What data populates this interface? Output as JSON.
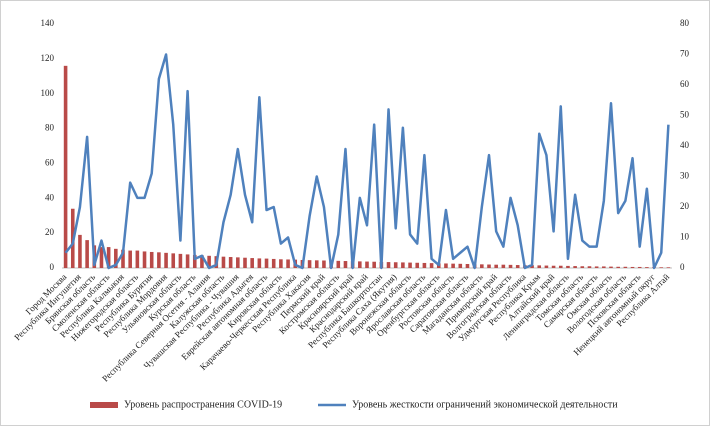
{
  "chart_data": {
    "type": "bar_line",
    "categories": [
      "Город Москва",
      null,
      "Республика Ингушетия",
      null,
      "Брянская область",
      null,
      "Смоленская область",
      null,
      "Республика Калмыкия",
      null,
      "Нижегородская область",
      null,
      "Республика Бурятия",
      null,
      "Республика Мордовия",
      null,
      "Ульяновская область",
      null,
      "Курская область",
      null,
      "Республика Северная Осетия - Алания",
      null,
      "Калужская область",
      null,
      "Чувашская Республика - Чувашия",
      null,
      "Республика Адыгея",
      null,
      "Еврейская автономная область",
      null,
      "Кировская область",
      null,
      "Карачаево-Черкесская Республика",
      null,
      "Республика Хакасия",
      null,
      "Пермский край",
      null,
      "Костромская область",
      null,
      "Красноярский край",
      null,
      "Краснодарский край",
      null,
      "Республика Башкортостан",
      null,
      "Республика Саха (Якутия)",
      null,
      "Воронежская область",
      null,
      "Ярославская область",
      null,
      "Оренбургская область",
      null,
      "Ростовская область",
      null,
      "Саратовская область",
      null,
      "Магаданская область",
      null,
      "Приморский край",
      null,
      "Волгоградская область",
      null,
      "Удмуртская Республика",
      null,
      "Республика Крым",
      null,
      "Алтайский край",
      null,
      "Ленинградская область",
      null,
      "Томская область",
      null,
      "Самарская область",
      null,
      "Омская область",
      null,
      "Вологодская область",
      null,
      "Псковская область",
      null,
      "Ненецкий автономный округ",
      null,
      "Республика Алтай"
    ],
    "series": [
      {
        "name": "Уровень распространения COVID-19",
        "color": "#b94a48",
        "kind": "bar",
        "axis": "y",
        "values": [
          116,
          34,
          19,
          16,
          13,
          12,
          12,
          11,
          10.5,
          10,
          10,
          9.5,
          9.2,
          9,
          8.7,
          8.4,
          8.1,
          7.8,
          7.5,
          7.3,
          7,
          6.8,
          6.5,
          6.3,
          6.1,
          5.9,
          5.7,
          5.5,
          5.4,
          5.2,
          5,
          4.9,
          4.8,
          4.6,
          4.5,
          4.4,
          4.3,
          4.2,
          4.1,
          4,
          3.9,
          3.8,
          3.7,
          3.6,
          3.5,
          3.4,
          3.3,
          3.2,
          3.1,
          3,
          2.9,
          2.8,
          2.7,
          2.6,
          2.5,
          2.4,
          2.3,
          2.2,
          2.1,
          2,
          1.9,
          1.9,
          1.8,
          1.7,
          1.6,
          1.6,
          1.5,
          1.4,
          1.3,
          1.3,
          1.2,
          1.1,
          1,
          1,
          0.9,
          0.9,
          0.8,
          0.7,
          0.7,
          0.6,
          0.6,
          0.5,
          0.5,
          0.4,
          0.4
        ]
      },
      {
        "name": "Уровень жесткости ограничений экономической деятельности",
        "color": "#4f81bd",
        "kind": "line",
        "axis": "y2",
        "values": [
          5,
          8,
          20,
          43,
          1,
          9,
          0,
          1,
          5,
          28,
          23,
          23,
          31,
          62,
          70,
          47,
          9,
          58,
          3,
          4,
          0,
          1,
          15,
          24,
          39,
          24,
          15,
          56,
          19,
          20,
          8,
          10,
          1,
          0,
          17,
          30,
          20,
          0,
          11,
          39,
          0,
          23,
          14,
          47,
          0,
          52,
          13,
          46,
          11,
          8,
          37,
          3,
          1,
          19,
          3,
          5,
          7,
          0,
          20,
          37,
          12,
          7,
          23,
          14,
          0,
          1,
          44,
          37,
          12,
          53,
          3,
          24,
          9,
          7,
          7,
          22,
          54,
          18,
          22,
          36,
          7,
          26,
          0,
          5,
          47
        ]
      }
    ],
    "ylim": [
      0,
      140
    ],
    "yticks": [
      0,
      20,
      40,
      60,
      80,
      100,
      120,
      140
    ],
    "y2lim": [
      0,
      80
    ],
    "y2ticks": [
      0,
      10,
      20,
      30,
      40,
      50,
      60,
      70,
      80
    ],
    "legend": "bottom"
  }
}
